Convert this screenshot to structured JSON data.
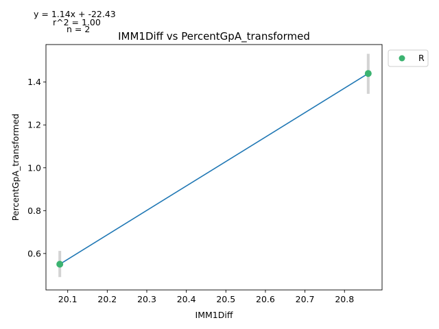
{
  "chart_data": {
    "type": "scatter",
    "title": "IMM1Diff vs PercentGpA_transformed",
    "xlabel": "IMM1Diff",
    "ylabel": "PercentGpA_transformed",
    "xlim": [
      20.045,
      20.895
    ],
    "ylim": [
      0.43,
      1.575
    ],
    "xticks": [
      20.1,
      20.2,
      20.3,
      20.4,
      20.5,
      20.6,
      20.7,
      20.8
    ],
    "yticks": [
      0.6,
      0.8,
      1.0,
      1.2,
      1.4
    ],
    "grid": false,
    "series": [
      {
        "name": "R",
        "color": "#3cb371",
        "points": [
          {
            "x": 20.08,
            "y": 0.55,
            "err_low": 0.49,
            "err_high": 0.612
          },
          {
            "x": 20.86,
            "y": 1.44,
            "err_low": 1.345,
            "err_high": 1.532
          }
        ]
      }
    ],
    "fit_line": {
      "slope": 1.14,
      "intercept": -22.43,
      "x_range": [
        20.08,
        20.86
      ],
      "color": "#1f77b4"
    },
    "error_bar_color": "#d3d3d3",
    "annotations": [
      "y = 1.14x + -22.43",
      "r^2 = 1.00",
      "n = 2"
    ],
    "legend": {
      "placement": "outside-top-right",
      "entries": [
        "R"
      ]
    }
  }
}
